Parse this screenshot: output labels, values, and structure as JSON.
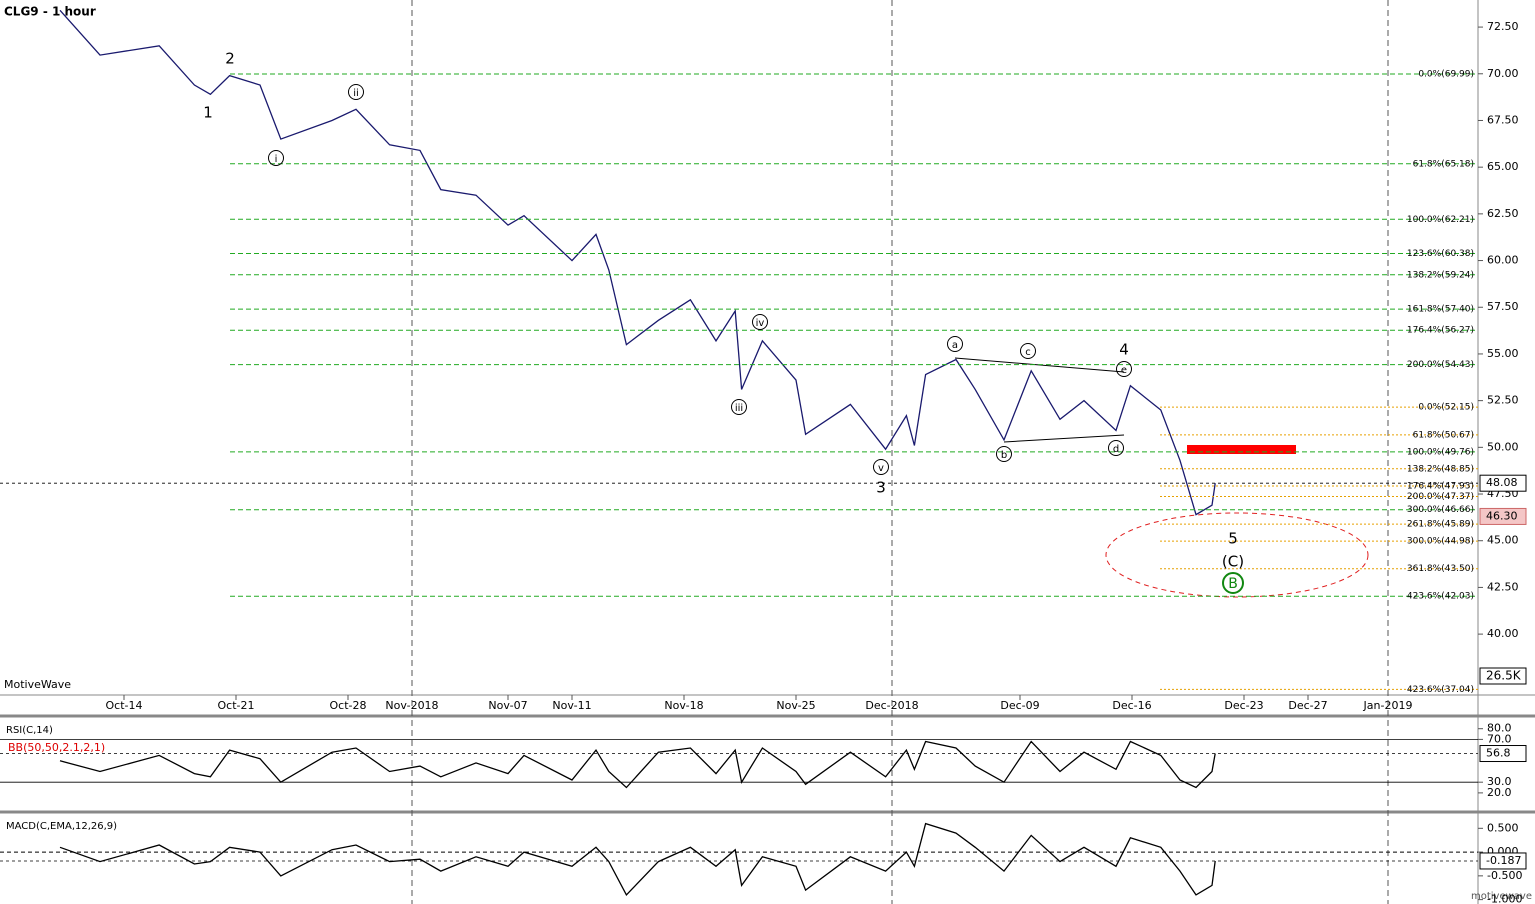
{
  "chart_data": [
    {
      "type": "line",
      "title": "CLG9 - 1 hour",
      "brand": "MotiveWave",
      "footer": "motivewave",
      "x": [
        -4,
        -1.5,
        2.2,
        4.4,
        5.4,
        6.6,
        8.5,
        9.8,
        13,
        14.5,
        16.6,
        18.5,
        19.8,
        22,
        24,
        25,
        28,
        29.5,
        30.3,
        31.4,
        33.4,
        35.4,
        37,
        38.2,
        38.6,
        39.9,
        42,
        42.6,
        45.4,
        47.6,
        48.9,
        49.4,
        50.1,
        52,
        53.2,
        55,
        56.7,
        58.5,
        60,
        62,
        62.9,
        64.8,
        66,
        67,
        68,
        68.2
      ],
      "series": [
        {
          "color": "#1a1a6e",
          "values": [
            73.4,
            71.0,
            71.5,
            69.4,
            68.9,
            69.9,
            69.4,
            66.5,
            67.5,
            68.1,
            66.2,
            65.9,
            63.8,
            63.5,
            61.9,
            62.4,
            60.0,
            61.4,
            59.5,
            55.5,
            56.8,
            57.9,
            55.7,
            57.3,
            53.1,
            55.7,
            53.6,
            50.7,
            52.3,
            49.9,
            51.7,
            50.1,
            53.9,
            54.7,
            53.1,
            50.4,
            54.1,
            51.5,
            52.5,
            50.9,
            53.3,
            52.0,
            49.3,
            46.4,
            46.9,
            48.08
          ]
        }
      ],
      "xlim": [
        -7.75,
        84.625
      ],
      "xticks": [
        {
          "value": 0,
          "label": "Oct-14"
        },
        {
          "value": 7,
          "label": "Oct-21"
        },
        {
          "value": 14,
          "label": "Oct-28"
        },
        {
          "value": 18,
          "label": "Nov-2018"
        },
        {
          "value": 24,
          "label": "Nov-07"
        },
        {
          "value": 28,
          "label": "Nov-11"
        },
        {
          "value": 35,
          "label": "Nov-18"
        },
        {
          "value": 42,
          "label": "Nov-25"
        },
        {
          "value": 48,
          "label": "Dec-2018"
        },
        {
          "value": 56,
          "label": "Dec-09"
        },
        {
          "value": 63,
          "label": "Dec-16"
        },
        {
          "value": 70,
          "label": "Dec-23"
        },
        {
          "value": 74,
          "label": "Dec-27"
        },
        {
          "value": 79,
          "label": "Jan-2019"
        }
      ],
      "ylim": [
        36.74,
        73.95
      ],
      "yticks": [
        {
          "value": 40,
          "label": "40.00"
        },
        {
          "value": 42.5,
          "label": "42.50"
        },
        {
          "value": 45,
          "label": "45.00"
        },
        {
          "value": 47.5,
          "label": "47.50"
        },
        {
          "value": 50,
          "label": "50.00"
        },
        {
          "value": 52.5,
          "label": "52.50"
        },
        {
          "value": 55,
          "label": "55.00"
        },
        {
          "value": 57.5,
          "label": "57.50"
        },
        {
          "value": 60,
          "label": "60.00"
        },
        {
          "value": 62.5,
          "label": "62.50"
        },
        {
          "value": 65,
          "label": "65.00"
        },
        {
          "value": 67.5,
          "label": "67.50"
        },
        {
          "value": 70,
          "label": "70.00"
        },
        {
          "value": 72.5,
          "label": "72.50"
        }
      ],
      "low_marker": {
        "value": 46.3,
        "label": "46.30"
      },
      "volume_label": "26.5K",
      "fib_groups": [
        {
          "color": "#22aa22",
          "levels": [
            {
              "label": "0.0%(69.99)",
              "value": 69.99
            },
            {
              "label": "61.8%(65.18)",
              "value": 65.18
            },
            {
              "label": "100.0%(62.21)",
              "value": 62.21
            },
            {
              "label": "123.6%(60.38)",
              "value": 60.38
            },
            {
              "label": "138.2%(59.24)",
              "value": 59.24
            },
            {
              "label": "161.8%(57.40)",
              "value": 57.4
            },
            {
              "label": "176.4%(56.27)",
              "value": 56.27
            },
            {
              "label": "200.0%(54.43)",
              "value": 54.43
            },
            {
              "label": "100.0%(49.76)",
              "value": 49.76
            },
            {
              "label": "300.0%(46.66)",
              "value": 46.66
            },
            {
              "label": "423.6%(42.03)",
              "value": 42.03
            }
          ]
        },
        {
          "color": "#e6a000",
          "levels": [
            {
              "label": "0.0%(52.15)",
              "value": 52.15
            },
            {
              "label": "61.8%(50.67)",
              "value": 50.67
            },
            {
              "label": "138.2%(48.85)",
              "value": 48.85
            },
            {
              "label": "176.4%(47.93)",
              "value": 47.93
            },
            {
              "label": "200.0%(47.37)",
              "value": 47.37
            },
            {
              "label": "261.8%(45.89)",
              "value": 45.89
            },
            {
              "label": "300.0%(44.98)",
              "value": 44.98
            },
            {
              "label": "361.8%(43.50)",
              "value": 43.5
            },
            {
              "label": "423.6%(37.04)",
              "value": 37.04
            }
          ]
        }
      ],
      "waves": [
        {
          "label": "1"
        },
        {
          "label": "2"
        },
        {
          "label": "i",
          "circled": true
        },
        {
          "label": "ii",
          "circled": true
        },
        {
          "label": "iii",
          "circled": true
        },
        {
          "label": "iv",
          "circled": true
        },
        {
          "label": "v",
          "circled": true
        },
        {
          "label": "3"
        },
        {
          "label": "a",
          "circled": true
        },
        {
          "label": "b",
          "circled": true
        },
        {
          "label": "c",
          "circled": true
        },
        {
          "label": "d",
          "circled": true
        },
        {
          "label": "e",
          "circled": true
        },
        {
          "label": "4"
        },
        {
          "label": "5"
        },
        {
          "label": "(C)"
        },
        {
          "label": "B",
          "circled": true,
          "color": "#118811"
        }
      ]
    },
    {
      "type": "line",
      "title": "RSI(C,14)",
      "subtitle": "BB(50,50,2.1,2,1)",
      "series": [
        {
          "color": "#000000",
          "values": [
            50,
            40,
            55,
            38,
            35,
            60,
            52,
            30,
            58,
            62,
            40,
            45,
            35,
            48,
            38,
            55,
            32,
            60,
            40,
            25,
            58,
            62,
            38,
            60,
            30,
            62,
            40,
            28,
            58,
            35,
            60,
            42,
            68,
            62,
            45,
            30,
            68,
            40,
            58,
            42,
            68,
            55,
            32,
            25,
            40,
            56.8
          ]
        }
      ],
      "ylim": [
        4,
        90
      ],
      "yticks": [
        {
          "value": 20,
          "label": "20.0"
        },
        {
          "value": 30,
          "label": "30.0"
        },
        {
          "value": 70,
          "label": "70.0"
        },
        {
          "value": 80,
          "label": "80.0"
        }
      ]
    },
    {
      "type": "line",
      "title": "MACD(C,EMA,12,26,9)",
      "series": [
        {
          "color": "#000000",
          "values": [
            0.1,
            -0.2,
            0.15,
            -0.25,
            -0.2,
            0.1,
            0,
            -0.5,
            0.05,
            0.15,
            -0.2,
            -0.15,
            -0.4,
            -0.1,
            -0.3,
            0,
            -0.3,
            0.1,
            -0.2,
            -0.9,
            -0.2,
            0.1,
            -0.3,
            0.05,
            -0.7,
            -0.1,
            -0.3,
            -0.8,
            -0.1,
            -0.4,
            0,
            -0.3,
            0.6,
            0.4,
            0.1,
            -0.4,
            0.35,
            -0.2,
            0.1,
            -0.3,
            0.3,
            0.1,
            -0.4,
            -0.9,
            -0.7,
            -0.187
          ]
        }
      ],
      "ylim": [
        -1.05,
        0.78
      ],
      "yticks": [
        {
          "value": -1,
          "label": "-1.000"
        },
        {
          "value": -0.5,
          "label": "-0.500"
        },
        {
          "value": 0,
          "label": "0.000"
        },
        {
          "value": 0.5,
          "label": "0.500"
        }
      ]
    }
  ]
}
